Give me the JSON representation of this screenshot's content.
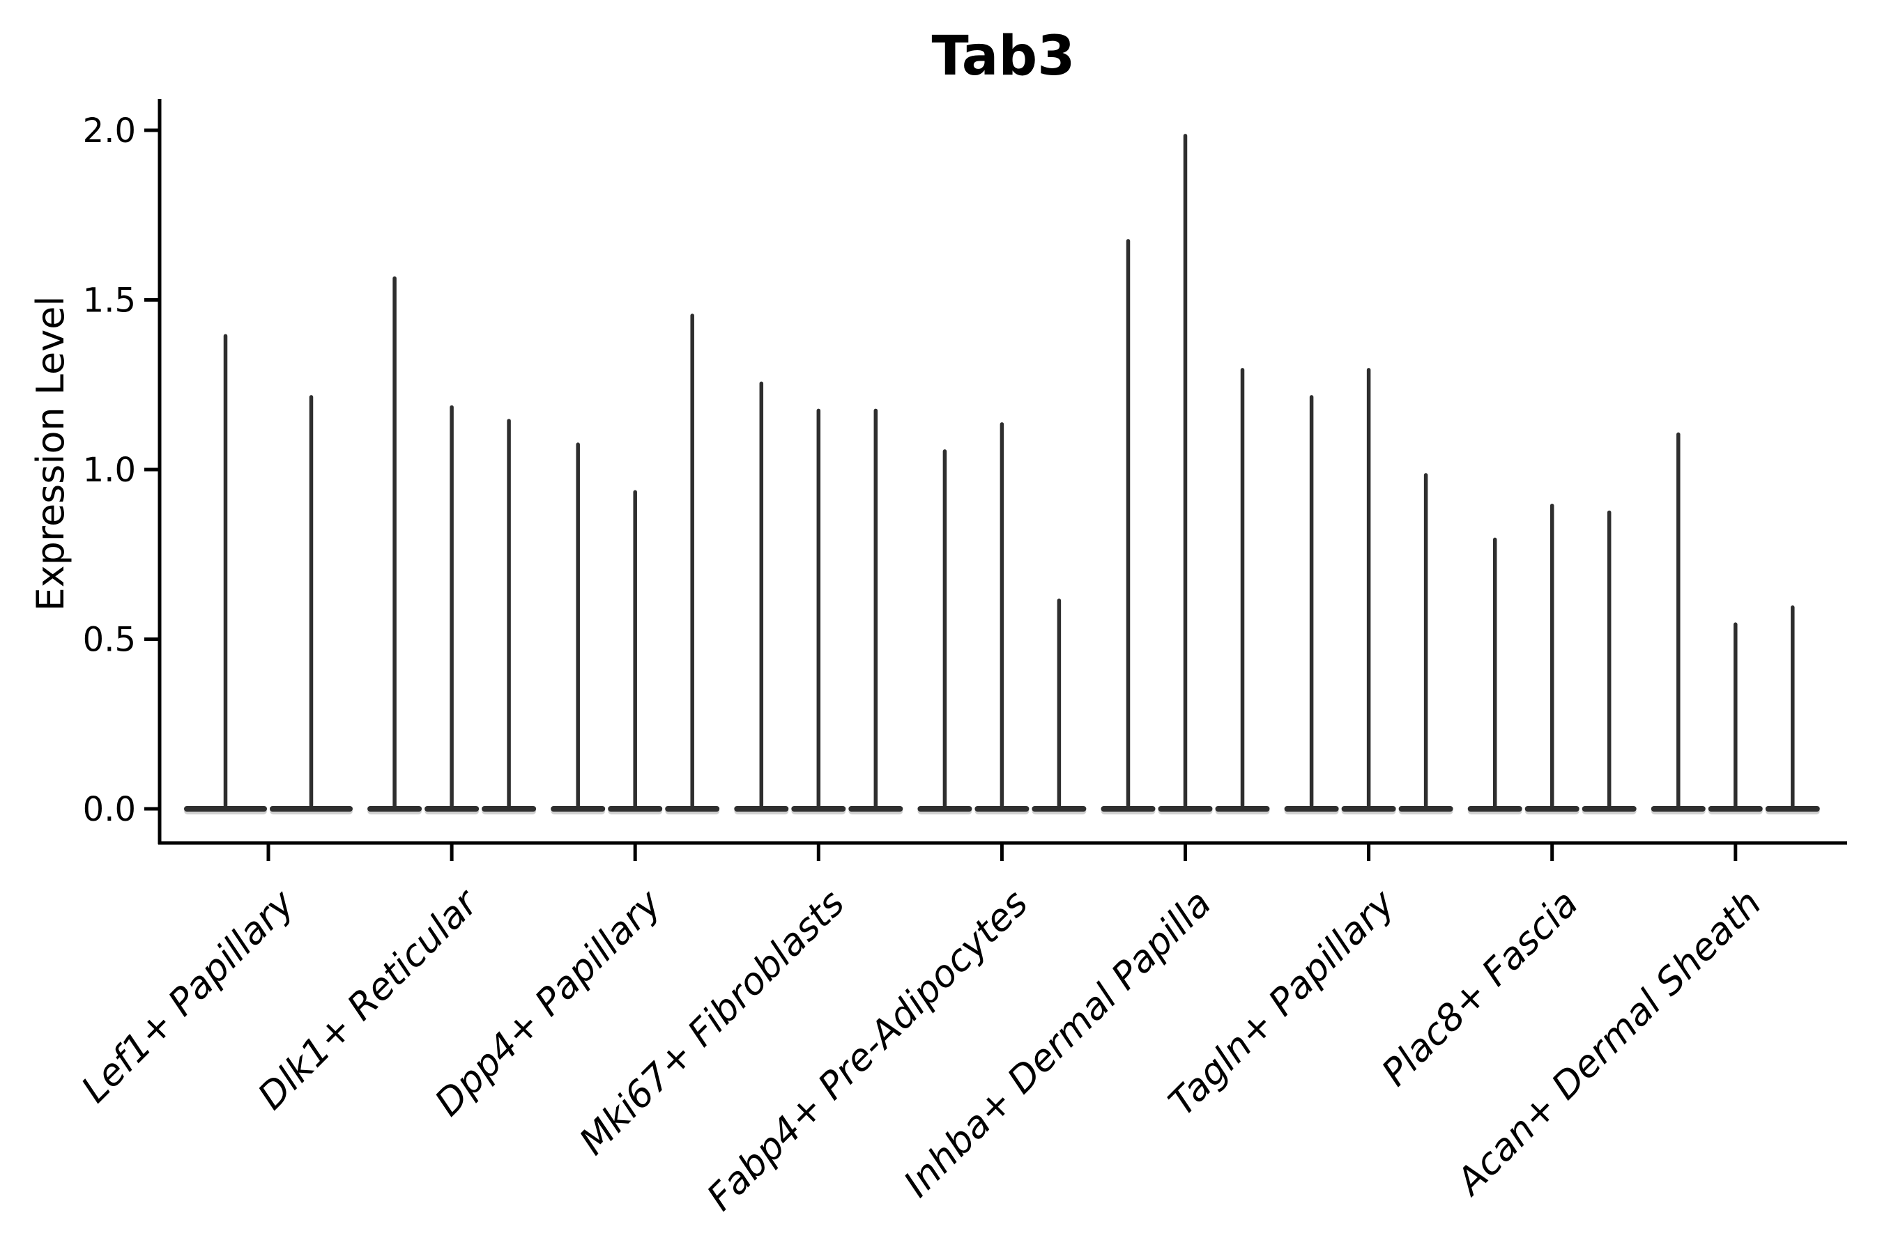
{
  "chart_data": {
    "type": "violin",
    "title": "Tab3",
    "ylabel": "Expression Level",
    "xlabel": "",
    "yticks": [
      0.0,
      0.5,
      1.0,
      1.5,
      2.0
    ],
    "ylim": [
      0,
      2.09
    ],
    "grid": false,
    "legend": "none",
    "x_tick_rotation": 45,
    "violin_color": "#2e2e2e",
    "axis_color": "#000000",
    "background_color": "#ffffff",
    "categories": [
      "Lef1+ Papillary",
      "Dlk1+ Reticular",
      "Dpp4+ Papillary",
      "Mki67+ Fibroblasts",
      "Fabp4+ Pre-Adipocytes",
      "Inhba+ Dermal Papilla",
      "Tagln+ Papillary",
      "Plac8+ Fascia",
      "Acan+ Dermal Sheath"
    ],
    "groups": [
      {
        "label": "Lef1+ Papillary",
        "violin_max_values": [
          1.4,
          1.22
        ]
      },
      {
        "label": "Dlk1+ Reticular",
        "violin_max_values": [
          1.57,
          1.19,
          1.15
        ]
      },
      {
        "label": "Dpp4+ Papillary",
        "violin_max_values": [
          1.08,
          0.94,
          1.46
        ]
      },
      {
        "label": "Mki67+ Fibroblasts",
        "violin_max_values": [
          1.26,
          1.18,
          1.18
        ]
      },
      {
        "label": "Fabp4+ Pre-Adipocytes",
        "violin_max_values": [
          1.06,
          1.14,
          0.62
        ]
      },
      {
        "label": "Inhba+ Dermal Papilla",
        "violin_max_values": [
          1.68,
          1.99,
          1.3
        ]
      },
      {
        "label": "Tagln+ Papillary",
        "violin_max_values": [
          1.22,
          1.3,
          0.99
        ]
      },
      {
        "label": "Plac8+ Fascia",
        "violin_max_values": [
          0.8,
          0.9,
          0.88
        ]
      },
      {
        "label": "Acan+ Dermal Sheath",
        "violin_max_values": [
          1.11,
          0.55,
          0.6
        ]
      }
    ]
  }
}
